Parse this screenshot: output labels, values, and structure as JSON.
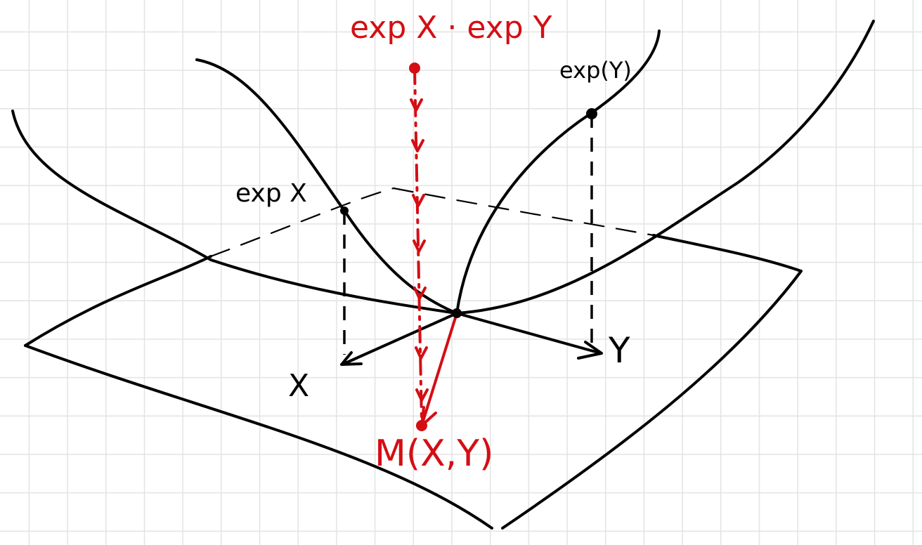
{
  "labels": {
    "exp_x": "exp X",
    "exp_y": "exp(Y)",
    "product": "exp X · exp Y",
    "x": "X",
    "y": "Y",
    "mean": "M(X,Y)"
  },
  "colors": {
    "ink": "#000000",
    "accent": "#d40e14",
    "grid": "#e3e3e3"
  }
}
